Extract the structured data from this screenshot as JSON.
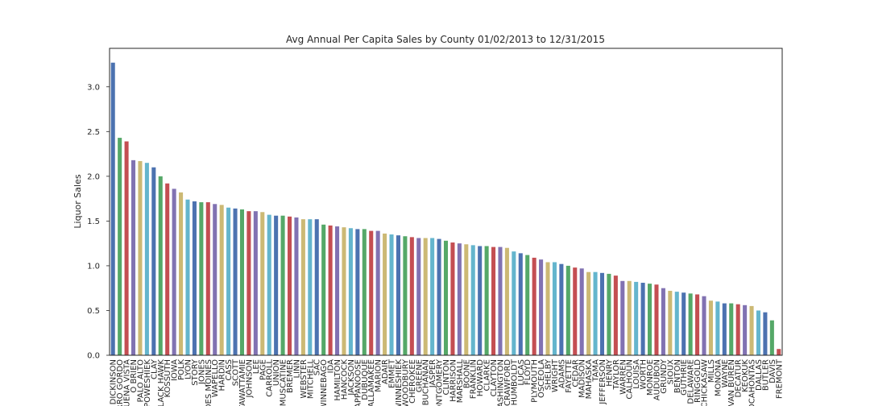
{
  "chart_data": {
    "type": "bar",
    "title": "Avg Annual Per Capita Sales by County 01/02/2013 to 12/31/2015",
    "y_label": "Liquor Sales",
    "categories": [
      "DICKINSON",
      "CERRO GORDO",
      "BUENA VISTA",
      "O BRIEN",
      "PALO ALTO",
      "POWESHIEK",
      "CLAY",
      "BLACK HAWK",
      "KOSSUTH",
      "IOWA",
      "POLK",
      "LYON",
      "STORY",
      "JONES",
      "DES MOINES",
      "WAPELLO",
      "HARDIN",
      "CASS",
      "SCOTT",
      "POTTAWATTAMIE",
      "JOHNSON",
      "LEE",
      "PAGE",
      "CARROLL",
      "UNION",
      "MUSCATINE",
      "BREMER",
      "LINN",
      "WEBSTER",
      "MITCHELL",
      "SAC",
      "WINNEBAGO",
      "IDA",
      "HAMILTON",
      "HANCOCK",
      "JACKSON",
      "APPANOOSE",
      "DUBUQUE",
      "ALLAMAKEE",
      "MARION",
      "ADAIR",
      "EMMET",
      "WINNESHIEK",
      "WOODBURY",
      "CHEROKEE",
      "GREENE",
      "BUCHANAN",
      "JASPER",
      "MONTGOMERY",
      "CLINTON",
      "HARRISON",
      "MARSHALL",
      "BOONE",
      "FRANKLIN",
      "HOWARD",
      "CLARKE",
      "CLAYTON",
      "WASHINGTON",
      "CRAWFORD",
      "HUMBOLDT",
      "LUCAS",
      "FLOYD",
      "PLYMOUTH",
      "OSCEOLA",
      "SHELBY",
      "WRIGHT",
      "ADAMS",
      "FAYETTE",
      "CEDAR",
      "MADISON",
      "MAHASKA",
      "TAMA",
      "JEFFERSON",
      "HENRY",
      "TAYLOR",
      "WARREN",
      "CALHOUN",
      "LOUISA",
      "WORTH",
      "MONROE",
      "AUDUBON",
      "GRUNDY",
      "SIOUX",
      "BENTON",
      "GUTHRIE",
      "DELAWARE",
      "RINGGOLD",
      "CHICKASAW",
      "MILLS",
      "MONONA",
      "WAYNE",
      "VAN BUREN",
      "DECATUR",
      "KEOKUK",
      "POCAHONTAS",
      "DALLAS",
      "BUTLER",
      "DAVIS",
      "FREMONT"
    ],
    "values": [
      3.27,
      2.43,
      2.39,
      2.18,
      2.17,
      2.15,
      2.1,
      2.0,
      1.92,
      1.86,
      1.82,
      1.74,
      1.72,
      1.71,
      1.71,
      1.69,
      1.68,
      1.65,
      1.64,
      1.63,
      1.61,
      1.61,
      1.6,
      1.57,
      1.56,
      1.56,
      1.55,
      1.54,
      1.52,
      1.52,
      1.52,
      1.46,
      1.45,
      1.44,
      1.43,
      1.42,
      1.41,
      1.41,
      1.39,
      1.39,
      1.36,
      1.35,
      1.34,
      1.33,
      1.32,
      1.31,
      1.31,
      1.31,
      1.3,
      1.28,
      1.26,
      1.25,
      1.24,
      1.23,
      1.22,
      1.22,
      1.21,
      1.21,
      1.2,
      1.16,
      1.14,
      1.12,
      1.09,
      1.07,
      1.04,
      1.04,
      1.02,
      1.0,
      0.98,
      0.97,
      0.93,
      0.93,
      0.92,
      0.91,
      0.89,
      0.83,
      0.83,
      0.82,
      0.81,
      0.8,
      0.79,
      0.75,
      0.72,
      0.71,
      0.7,
      0.69,
      0.68,
      0.66,
      0.61,
      0.6,
      0.58,
      0.58,
      0.57,
      0.56,
      0.55,
      0.5,
      0.48,
      0.39,
      0.07
    ],
    "colors": [
      "#4c72b0",
      "#55a868",
      "#c44e52",
      "#8172b2",
      "#ccb974",
      "#64b5cd"
    ],
    "ylim": [
      0,
      3.43
    ],
    "yticks": [
      {
        "value": 0,
        "label": "0.0"
      },
      {
        "value": 0.5,
        "label": "0.5"
      },
      {
        "value": 1,
        "label": "1.0"
      },
      {
        "value": 1.5,
        "label": "1.5"
      },
      {
        "value": 2,
        "label": "2.0"
      },
      {
        "value": 2.5,
        "label": "2.5"
      },
      {
        "value": 3,
        "label": "3.0"
      }
    ],
    "grid": false
  }
}
